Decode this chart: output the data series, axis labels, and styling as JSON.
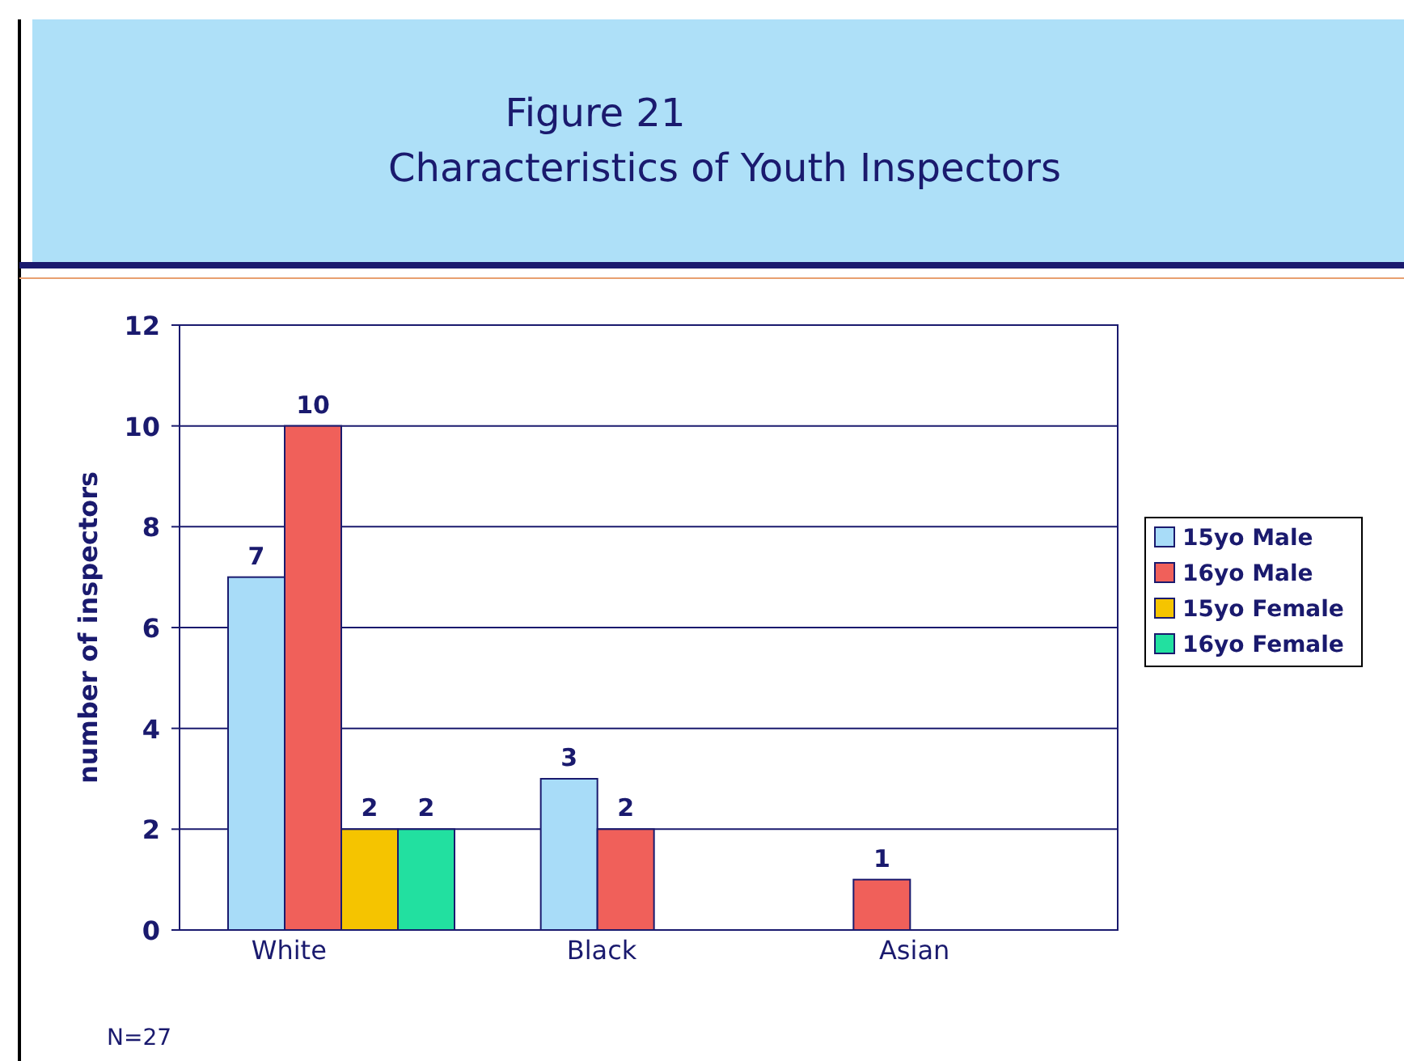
{
  "chart_data": {
    "type": "bar",
    "title": "Figure 21",
    "subtitle": "Characteristics of Youth Inspectors",
    "ylabel": "number of inspectors",
    "categories": [
      "White",
      "Black",
      "Asian"
    ],
    "series": [
      {
        "name": "15yo Male",
        "color": "#a8dcf8",
        "values": [
          7,
          3,
          null
        ]
      },
      {
        "name": "16yo Male",
        "color": "#f0605a",
        "values": [
          10,
          2,
          1
        ]
      },
      {
        "name": "15yo Female",
        "color": "#f5c400",
        "values": [
          2,
          null,
          null
        ]
      },
      {
        "name": "16yo Female",
        "color": "#22e0a0",
        "values": [
          2,
          null,
          null
        ]
      }
    ],
    "ylim": [
      0,
      12
    ],
    "yticks": [
      0,
      2,
      4,
      6,
      8,
      10,
      12
    ],
    "grid": "y",
    "legend": "right",
    "data_labels": true,
    "annotations": [
      "N=27"
    ]
  }
}
